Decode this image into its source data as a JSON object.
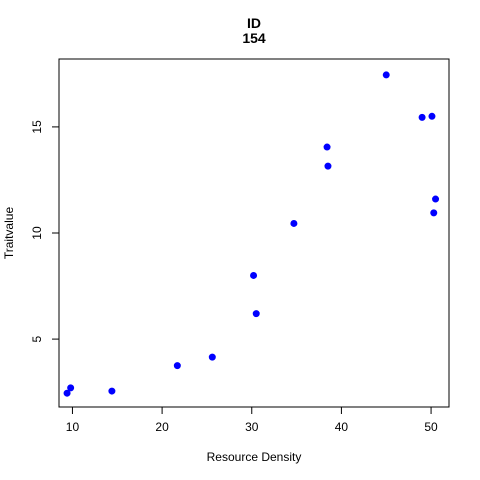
{
  "chart_data": {
    "type": "scatter",
    "title": "ID",
    "subtitle": "154",
    "xlabel": "Resource Density",
    "ylabel": "Traitvalue",
    "xlim": [
      8.5,
      52
    ],
    "ylim": [
      1.8,
      18.2
    ],
    "xticks": [
      10,
      20,
      30,
      40,
      50
    ],
    "yticks": [
      5,
      10,
      15
    ],
    "grid": false,
    "point_color": "#0000ff",
    "points": [
      {
        "x": 9.4,
        "y": 2.45
      },
      {
        "x": 9.8,
        "y": 2.7
      },
      {
        "x": 14.4,
        "y": 2.55
      },
      {
        "x": 21.7,
        "y": 3.75
      },
      {
        "x": 25.6,
        "y": 4.15
      },
      {
        "x": 30.2,
        "y": 8.0
      },
      {
        "x": 30.5,
        "y": 6.2
      },
      {
        "x": 34.7,
        "y": 10.45
      },
      {
        "x": 38.4,
        "y": 14.05
      },
      {
        "x": 38.5,
        "y": 13.15
      },
      {
        "x": 45.0,
        "y": 17.45
      },
      {
        "x": 49.0,
        "y": 15.45
      },
      {
        "x": 50.1,
        "y": 15.5
      },
      {
        "x": 50.3,
        "y": 10.95
      },
      {
        "x": 50.5,
        "y": 11.6
      }
    ]
  }
}
